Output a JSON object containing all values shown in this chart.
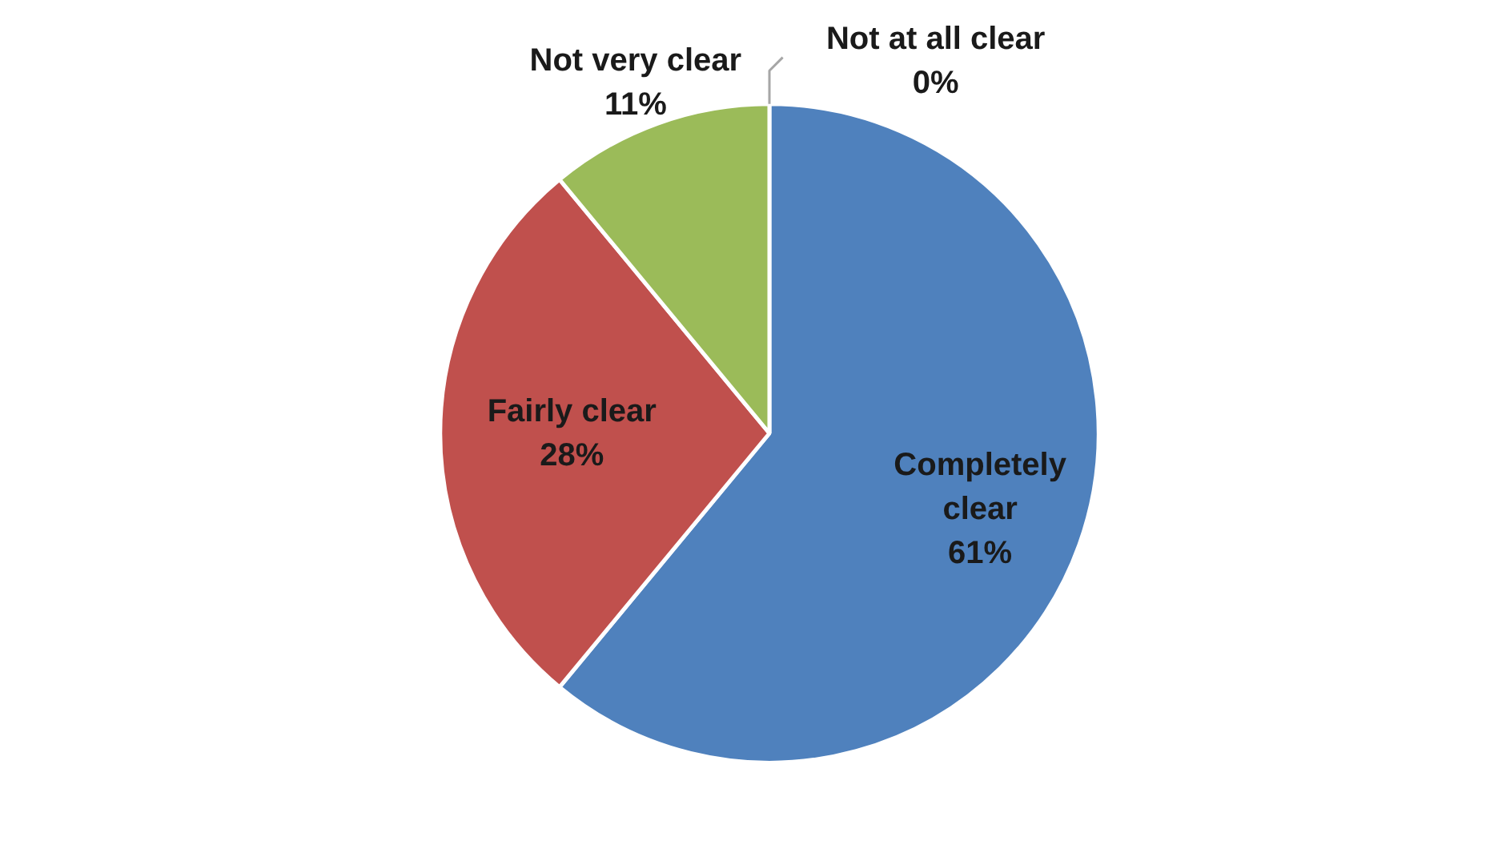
{
  "chart_data": {
    "type": "pie",
    "categories": [
      "Completely clear",
      "Fairly clear",
      "Not very clear",
      "Not at all clear"
    ],
    "values": [
      61,
      28,
      11,
      0
    ],
    "colors": [
      "#4f81bd",
      "#c0504d",
      "#9bbb59",
      "#8064a2"
    ],
    "value_labels": [
      "61%",
      "28%",
      "11%",
      "0%"
    ]
  }
}
